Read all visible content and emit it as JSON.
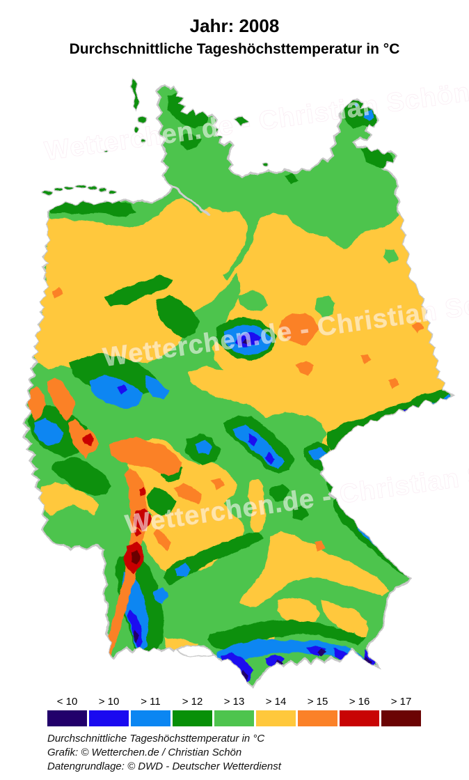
{
  "title": {
    "line1": "Jahr: 2008",
    "line2": "Durchschnittliche Tageshöchsttemperatur in °C"
  },
  "watermark": {
    "text": "Wetterchen.de - Christian Schön"
  },
  "legend": {
    "items": [
      {
        "label": "< 10",
        "color": "#22006B"
      },
      {
        "label": "> 10",
        "color": "#1A0AF0"
      },
      {
        "label": "> 11",
        "color": "#0B86F2"
      },
      {
        "label": "> 12",
        "color": "#089008"
      },
      {
        "label": "> 13",
        "color": "#4EC44E"
      },
      {
        "label": "> 14",
        "color": "#FFC83C"
      },
      {
        "label": "> 15",
        "color": "#FB8128"
      },
      {
        "label": "> 16",
        "color": "#C80404"
      },
      {
        "label": "> 17",
        "color": "#6B0404"
      }
    ]
  },
  "caption": {
    "lines": [
      "Durchschnittliche Tageshöchsttemperatur in °C",
      "Grafik: © Wetterchen.de / Christian Schön",
      "Datengrundlage: © DWD - Deutscher Wetterdienst"
    ]
  },
  "map": {
    "coast_color": "#C8C8C8",
    "river_color": "#CFCFCF",
    "lake_color": "#0B86F2"
  }
}
